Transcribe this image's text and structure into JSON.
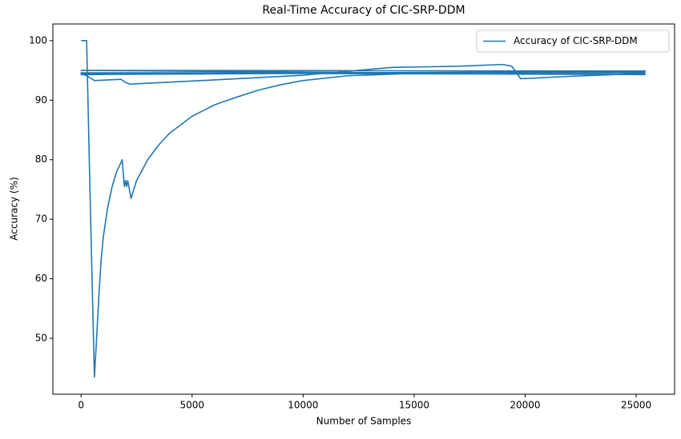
{
  "chart_data": {
    "type": "line",
    "title": "Real-Time Accuracy of CIC-SRP-DDM",
    "x_label": "Number of Samples",
    "y_label": "Accuracy (%)",
    "x": [
      0,
      250,
      400,
      600,
      700,
      800,
      850,
      900,
      1000,
      1200,
      1400,
      1600,
      1800,
      1850,
      1950,
      2000,
      2050,
      2100,
      2250,
      2500,
      3000,
      3500,
      4000,
      5000,
      6000,
      7000,
      8000,
      9000,
      10000,
      12000,
      15000,
      20000,
      25400,
      0,
      25400,
      0,
      25400,
      0,
      25400,
      0,
      300,
      600,
      1800,
      2000,
      2200,
      6000,
      10000,
      14000,
      17000,
      19000,
      19400,
      19800,
      22000,
      25400
    ],
    "series": [
      {
        "name": "Accuracy of CIC-SRP-DDM",
        "color": "#1f77b4",
        "values": [
          100,
          100,
          75,
          43.5,
          50,
          57,
          60,
          63,
          67,
          72,
          75.5,
          78,
          79.5,
          80,
          75.5,
          76.5,
          75.5,
          76.5,
          73.5,
          76.5,
          80,
          82.5,
          84.5,
          87.3,
          89.2,
          90.5,
          91.7,
          92.6,
          93.3,
          94.1,
          94.5,
          94.7,
          94.8,
          94.3,
          94.9,
          95,
          94.3,
          94.6,
          94.6,
          94.5,
          94,
          93.3,
          93.5,
          93,
          92.7,
          93.4,
          94.2,
          95.5,
          95.7,
          96,
          95.7,
          93.6,
          94,
          94.5
        ]
      }
    ],
    "xlim": [
      -1270,
      26730
    ],
    "xticks": [
      0,
      5000,
      10000,
      15000,
      20000,
      25000
    ],
    "ylim": [
      40.6,
      102.8
    ],
    "yticks": [
      50,
      60,
      70,
      80,
      90,
      100
    ],
    "legend": "upper right"
  }
}
